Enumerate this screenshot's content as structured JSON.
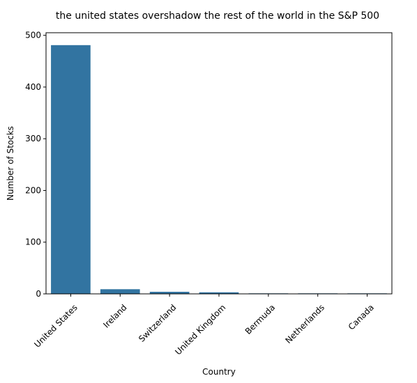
{
  "chart_data": {
    "type": "bar",
    "title": "the united states overshadow the rest of the world in the S&P 500",
    "xlabel": "Country",
    "ylabel": "Number of Stocks",
    "categories": [
      "United States",
      "Ireland",
      "Switzerland",
      "United Kingdom",
      "Bermuda",
      "Netherlands",
      "Canada"
    ],
    "values": [
      481,
      9,
      4,
      3,
      1,
      1,
      1
    ],
    "ylim": [
      0,
      505
    ],
    "yticks": [
      0,
      100,
      200,
      300,
      400,
      500
    ],
    "grid": false,
    "bar_color": "#3274a1"
  }
}
